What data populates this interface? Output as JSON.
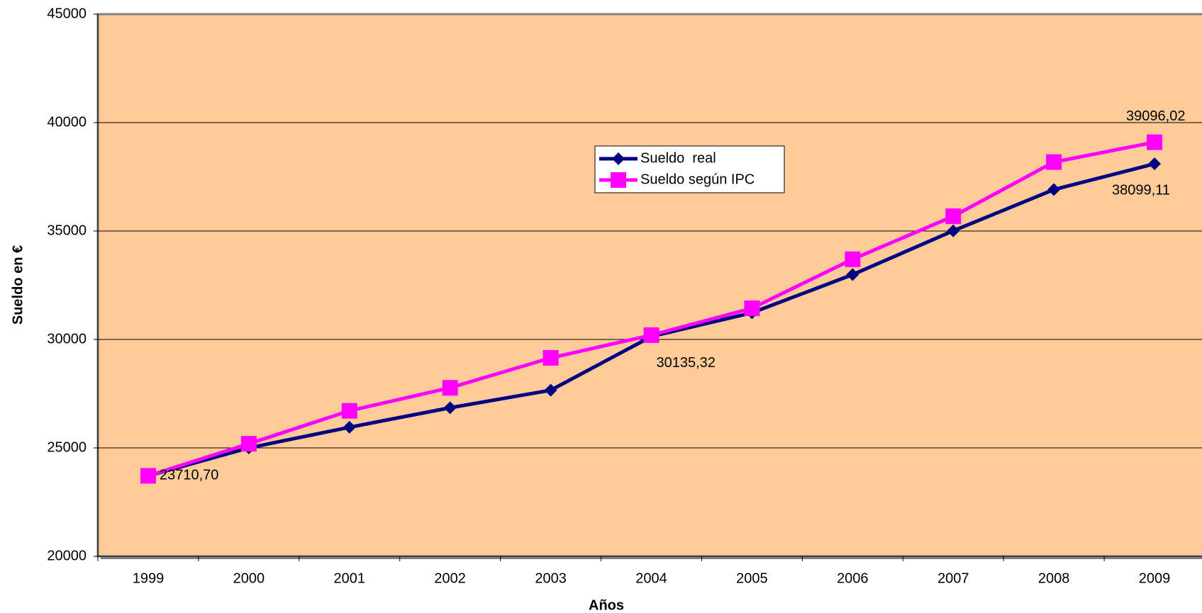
{
  "chart_data": {
    "type": "line",
    "x_label": "Años",
    "y_label": "Sueldo en €",
    "categories": [
      "1999",
      "2000",
      "2001",
      "2002",
      "2003",
      "2004",
      "2005",
      "2006",
      "2007",
      "2008",
      "2009"
    ],
    "series": [
      {
        "name": "Sueldo  real",
        "color": "#000080",
        "marker": "diamond",
        "values": [
          23710.7,
          25000,
          25950,
          26850,
          27660,
          30135.32,
          31230,
          32990,
          35010,
          36910,
          38099.11
        ],
        "value_labels": [
          "23710,70",
          null,
          null,
          null,
          null,
          "30135,32",
          null,
          null,
          null,
          null,
          "38099,11"
        ]
      },
      {
        "name": "Sueldo según IPC",
        "color": "#FF00FF",
        "marker": "square",
        "values": [
          23710.7,
          25190,
          26710,
          27770,
          29150,
          30200,
          31440,
          33700,
          35680,
          38180,
          39096.02
        ],
        "value_labels": [
          null,
          null,
          null,
          null,
          null,
          null,
          null,
          null,
          null,
          null,
          "39096,02"
        ]
      }
    ],
    "ylim": [
      20000,
      45000
    ],
    "yticks": [
      20000,
      25000,
      30000,
      35000,
      40000,
      45000
    ],
    "grid": true,
    "background": "#FFCC99"
  }
}
